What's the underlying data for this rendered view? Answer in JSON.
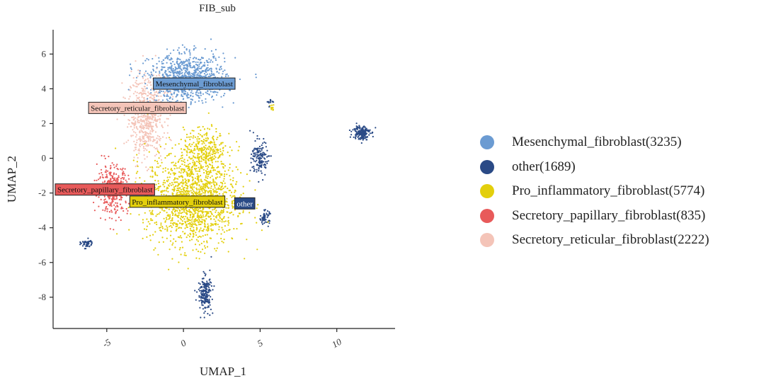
{
  "chart_data": {
    "type": "scatter",
    "title": "FIB_sub",
    "xlabel": "UMAP_1",
    "ylabel": "UMAP_2",
    "xlim": [
      -8.5,
      13.8
    ],
    "ylim": [
      -9.8,
      7.4
    ],
    "x_ticks": [
      {
        "value": -5,
        "label": "-5"
      },
      {
        "value": 0,
        "label": "0"
      },
      {
        "value": 5,
        "label": "5"
      },
      {
        "value": 10,
        "label": "10"
      }
    ],
    "y_ticks": [
      {
        "value": 6,
        "label": "6"
      },
      {
        "value": 4,
        "label": "4"
      },
      {
        "value": 2,
        "label": "2"
      },
      {
        "value": 0,
        "label": "0"
      },
      {
        "value": -2,
        "label": "-2"
      },
      {
        "value": -4,
        "label": "-4"
      },
      {
        "value": -6,
        "label": "-6"
      },
      {
        "value": -8,
        "label": "-8"
      }
    ],
    "series": [
      {
        "name": "Mesenchymal_fibroblast",
        "count": 3235,
        "color": "#6b9bd2",
        "legend_label": "Mesenchymal_fibroblast(3235)",
        "regions": [
          {
            "cx": 0.3,
            "cy": 4.6,
            "sx": 2.0,
            "sy": 1.1,
            "n": 900
          }
        ],
        "label": {
          "text": "Mesenchymal_fibroblast",
          "x": 0.7,
          "y": 4.3
        }
      },
      {
        "name": "other",
        "count": 1689,
        "color": "#2a4a86",
        "legend_label": "other(1689)",
        "regions": [
          {
            "cx": 11.6,
            "cy": 1.5,
            "sx": 0.45,
            "sy": 0.35,
            "n": 170
          },
          {
            "cx": 5.0,
            "cy": 0.0,
            "sx": 0.45,
            "sy": 0.8,
            "n": 150
          },
          {
            "cx": 5.3,
            "cy": -3.4,
            "sx": 0.25,
            "sy": 0.3,
            "n": 60
          },
          {
            "cx": -6.3,
            "cy": -4.9,
            "sx": 0.3,
            "sy": 0.2,
            "n": 50
          },
          {
            "cx": 1.4,
            "cy": -7.8,
            "sx": 0.35,
            "sy": 0.8,
            "n": 190
          },
          {
            "cx": 5.7,
            "cy": 3.2,
            "sx": 0.35,
            "sy": 0.2,
            "n": 15
          }
        ],
        "label": {
          "text": "other",
          "x": 4.0,
          "y": -2.6
        }
      },
      {
        "name": "Pro_inflammatory_fibroblast",
        "count": 5774,
        "color": "#e3cf0c",
        "legend_label": "Pro_inflammatory_fibroblast(5774)",
        "regions": [
          {
            "cx": 0.6,
            "cy": -2.3,
            "sx": 2.4,
            "sy": 2.2,
            "n": 1500
          },
          {
            "cx": 1.4,
            "cy": 0.6,
            "sx": 1.1,
            "sy": 0.9,
            "n": 250
          },
          {
            "cx": 5.8,
            "cy": 2.9,
            "sx": 0.12,
            "sy": 0.15,
            "n": 12
          }
        ],
        "label": {
          "text": "Pro_inflammatory_fibroblast",
          "x": -0.4,
          "y": -2.5
        }
      },
      {
        "name": "Secretory_papillary_fibroblast",
        "count": 835,
        "color": "#e85a5a",
        "legend_label": "Secretory_papillary_fibroblast(835)",
        "regions": [
          {
            "cx": -4.6,
            "cy": -1.8,
            "sx": 0.8,
            "sy": 1.1,
            "n": 350
          }
        ],
        "label": {
          "text": "Secretory_papillary_fibroblast",
          "x": -5.2,
          "y": -1.8
        }
      },
      {
        "name": "Secretory_reticular_fibroblast",
        "count": 2222,
        "color": "#f4c4b8",
        "legend_label": "Secretory_reticular_fibroblast(2222)",
        "regions": [
          {
            "cx": -2.4,
            "cy": 2.4,
            "sx": 0.95,
            "sy": 1.9,
            "n": 600
          }
        ],
        "label": {
          "text": "Secretory_reticular_fibroblast",
          "x": -3.0,
          "y": 2.9
        }
      }
    ]
  }
}
